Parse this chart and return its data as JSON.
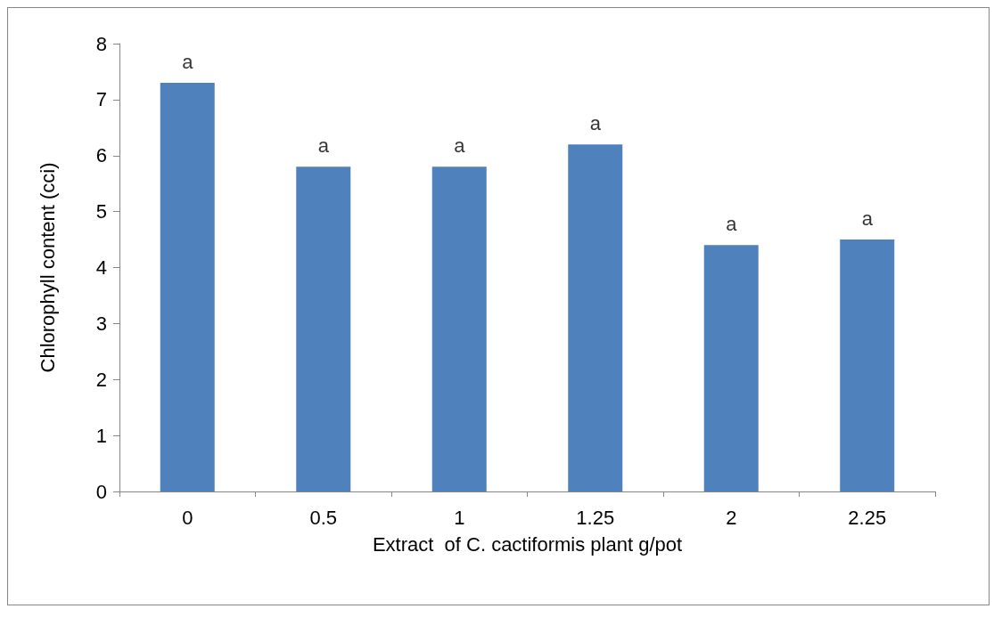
{
  "chart_data": {
    "type": "bar",
    "xlabel": "Extract  of C. cactiformis plant g/pot",
    "ylabel": "Chlorophyll content (cci)",
    "categories": [
      "0",
      "0.5",
      "1",
      "1.25",
      "2",
      "2.25"
    ],
    "values": [
      7.3,
      5.8,
      5.8,
      6.2,
      4.4,
      4.5
    ],
    "color": "#4f81bd",
    "ylim": [
      0,
      8
    ],
    "yticks": [
      0,
      1,
      2,
      3,
      4,
      5,
      6,
      7,
      8
    ],
    "grid": false,
    "annotations": [
      {
        "text": "a",
        "x": "0",
        "y": 7.3
      },
      {
        "text": "a",
        "x": "0.5",
        "y": 5.8
      },
      {
        "text": "a",
        "x": "1",
        "y": 5.8
      },
      {
        "text": "a",
        "x": "1.25",
        "y": 6.2
      },
      {
        "text": "a",
        "x": "2",
        "y": 4.4
      },
      {
        "text": "a",
        "x": "2.25",
        "y": 4.5
      }
    ]
  }
}
